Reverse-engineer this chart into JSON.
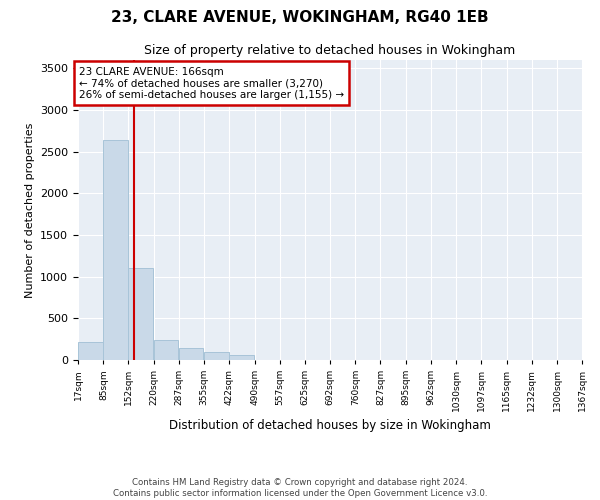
{
  "title1": "23, CLARE AVENUE, WOKINGHAM, RG40 1EB",
  "title2": "Size of property relative to detached houses in Wokingham",
  "xlabel": "Distribution of detached houses by size in Wokingham",
  "ylabel": "Number of detached properties",
  "property_size": 166,
  "annotation_line1": "23 CLARE AVENUE: 166sqm",
  "annotation_line2": "← 74% of detached houses are smaller (3,270)",
  "annotation_line3": "26% of semi-detached houses are larger (1,155) →",
  "bar_color": "#c9d9e8",
  "bar_edge_color": "#a8c4d8",
  "vline_color": "#cc0000",
  "annotation_box_edge": "#cc0000",
  "background_color": "#ffffff",
  "plot_bg_color": "#e8eef5",
  "grid_color": "#ffffff",
  "bins": [
    17,
    85,
    152,
    220,
    287,
    355,
    422,
    490,
    557,
    625,
    692,
    760,
    827,
    895,
    962,
    1030,
    1097,
    1165,
    1232,
    1300,
    1367
  ],
  "bin_labels": [
    "17sqm",
    "85sqm",
    "152sqm",
    "220sqm",
    "287sqm",
    "355sqm",
    "422sqm",
    "490sqm",
    "557sqm",
    "625sqm",
    "692sqm",
    "760sqm",
    "827sqm",
    "895sqm",
    "962sqm",
    "1030sqm",
    "1097sqm",
    "1165sqm",
    "1232sqm",
    "1300sqm",
    "1367sqm"
  ],
  "counts": [
    220,
    2640,
    1100,
    240,
    145,
    100,
    65,
    0,
    0,
    0,
    0,
    0,
    0,
    0,
    0,
    0,
    0,
    0,
    0,
    0
  ],
  "ylim": [
    0,
    3600
  ],
  "yticks": [
    0,
    500,
    1000,
    1500,
    2000,
    2500,
    3000,
    3500
  ],
  "footnote1": "Contains HM Land Registry data © Crown copyright and database right 2024.",
  "footnote2": "Contains public sector information licensed under the Open Government Licence v3.0."
}
